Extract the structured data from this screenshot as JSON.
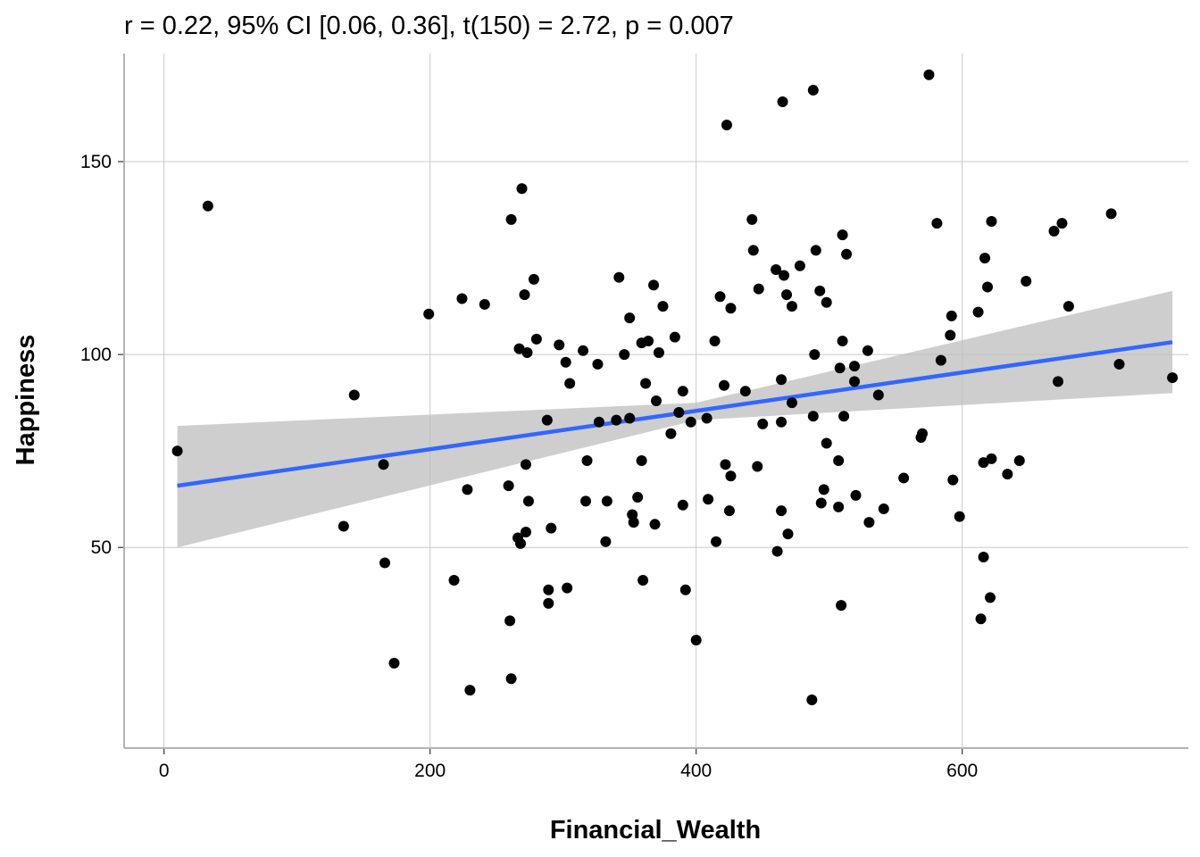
{
  "chart_data": {
    "type": "scatter",
    "title": "r = 0.22, 95% CI [0.06, 0.36], t(150) = 2.72, p = 0.007",
    "xlabel": "Financial_Wealth",
    "ylabel": "Happiness",
    "xlim": [
      -30,
      770
    ],
    "ylim": [
      -2,
      178
    ],
    "x_ticks": [
      0,
      200,
      400,
      600
    ],
    "y_ticks": [
      50,
      100,
      150
    ],
    "x_tick_labels": [
      "0",
      "200",
      "400",
      "600"
    ],
    "y_tick_labels": [
      "50",
      "100",
      "150"
    ],
    "grid": true,
    "colors": {
      "points": "#000000",
      "fit_line": "#3366FF",
      "confidence_band": "#BEBEBE",
      "grid": "#C8C8C8",
      "panel_border": "#B4B4B4"
    },
    "fit": {
      "method": "linear",
      "line": [
        [
          10,
          66
        ],
        [
          758,
          103.2
        ]
      ],
      "ci_lower": [
        [
          10,
          50
        ],
        [
          400,
          83
        ],
        [
          758,
          90
        ]
      ],
      "ci_upper": [
        [
          10,
          81.5
        ],
        [
          400,
          87.5
        ],
        [
          758,
          116.5
        ]
      ]
    },
    "points": [
      [
        10,
        75
      ],
      [
        33,
        138.5
      ],
      [
        135,
        55.5
      ],
      [
        143,
        89.5
      ],
      [
        165,
        71.5
      ],
      [
        166,
        46
      ],
      [
        173,
        20
      ],
      [
        199,
        110.5
      ],
      [
        218,
        41.5
      ],
      [
        224,
        114.5
      ],
      [
        228,
        65
      ],
      [
        230,
        13
      ],
      [
        241,
        113
      ],
      [
        259,
        66
      ],
      [
        260,
        31
      ],
      [
        261,
        135
      ],
      [
        261,
        16
      ],
      [
        266,
        52.5
      ],
      [
        267,
        101.5
      ],
      [
        268,
        51
      ],
      [
        269,
        143
      ],
      [
        271,
        115.5
      ],
      [
        272,
        71.5
      ],
      [
        272,
        54
      ],
      [
        273,
        100.5
      ],
      [
        274,
        62
      ],
      [
        278,
        119.5
      ],
      [
        280,
        104
      ],
      [
        288,
        83
      ],
      [
        289,
        35.5
      ],
      [
        289,
        39
      ],
      [
        291,
        55
      ],
      [
        297,
        102.5
      ],
      [
        302,
        98
      ],
      [
        303,
        39.5
      ],
      [
        305,
        92.5
      ],
      [
        315,
        101
      ],
      [
        317,
        62
      ],
      [
        318,
        72.5
      ],
      [
        326,
        97.5
      ],
      [
        327,
        82.5
      ],
      [
        332,
        51.5
      ],
      [
        333,
        62
      ],
      [
        340,
        83
      ],
      [
        342,
        120
      ],
      [
        346,
        100
      ],
      [
        350,
        109.5
      ],
      [
        350,
        83.5
      ],
      [
        352,
        58.5
      ],
      [
        353,
        56.5
      ],
      [
        356,
        63
      ],
      [
        359,
        72.5
      ],
      [
        359,
        103
      ],
      [
        360,
        41.5
      ],
      [
        362,
        92.5
      ],
      [
        364,
        103.5
      ],
      [
        368,
        118
      ],
      [
        369,
        56
      ],
      [
        370,
        88
      ],
      [
        372,
        100.5
      ],
      [
        375,
        112.5
      ],
      [
        381,
        79.5
      ],
      [
        384,
        104.5
      ],
      [
        387,
        85
      ],
      [
        390,
        90.5
      ],
      [
        390,
        61
      ],
      [
        392,
        39
      ],
      [
        396,
        82.5
      ],
      [
        400,
        26
      ],
      [
        408,
        83.5
      ],
      [
        409,
        62.5
      ],
      [
        414,
        103.5
      ],
      [
        415,
        51.5
      ],
      [
        418,
        115
      ],
      [
        421,
        92
      ],
      [
        422,
        71.5
      ],
      [
        423,
        159.5
      ],
      [
        425,
        59.5
      ],
      [
        426,
        68.5
      ],
      [
        426,
        112
      ],
      [
        437,
        90.5
      ],
      [
        442,
        135
      ],
      [
        443,
        127
      ],
      [
        446,
        71
      ],
      [
        447,
        117
      ],
      [
        450,
        82
      ],
      [
        460,
        122
      ],
      [
        461,
        49
      ],
      [
        464,
        93.5
      ],
      [
        464,
        82.5
      ],
      [
        464,
        59.5
      ],
      [
        465,
        165.5
      ],
      [
        466,
        120.5
      ],
      [
        468,
        115.5
      ],
      [
        469,
        53.5
      ],
      [
        472,
        112.5
      ],
      [
        472,
        87.5
      ],
      [
        478,
        123
      ],
      [
        487,
        10.5
      ],
      [
        488,
        168.5
      ],
      [
        488,
        84
      ],
      [
        489,
        100
      ],
      [
        490,
        127
      ],
      [
        493,
        116.5
      ],
      [
        494,
        61.5
      ],
      [
        496,
        65
      ],
      [
        498,
        113.5
      ],
      [
        498,
        77
      ],
      [
        507,
        60.5
      ],
      [
        507,
        72.5
      ],
      [
        508,
        96.5
      ],
      [
        509,
        35
      ],
      [
        510,
        103.5
      ],
      [
        510,
        131
      ],
      [
        511,
        84
      ],
      [
        513,
        126
      ],
      [
        519,
        93
      ],
      [
        519,
        97
      ],
      [
        520,
        63.5
      ],
      [
        529,
        101
      ],
      [
        530,
        56.5
      ],
      [
        537,
        89.5
      ],
      [
        541,
        60
      ],
      [
        556,
        68
      ],
      [
        569,
        78.5
      ],
      [
        570,
        79.5
      ],
      [
        575,
        172.5
      ],
      [
        581,
        134
      ],
      [
        584,
        98.5
      ],
      [
        591,
        105
      ],
      [
        592,
        110
      ],
      [
        593,
        67.5
      ],
      [
        598,
        58
      ],
      [
        612,
        111
      ],
      [
        614,
        31.5
      ],
      [
        616,
        47.5
      ],
      [
        616,
        72
      ],
      [
        617,
        125
      ],
      [
        619,
        117.5
      ],
      [
        621,
        37
      ],
      [
        622,
        134.5
      ],
      [
        622,
        73
      ],
      [
        634,
        69
      ],
      [
        643,
        72.5
      ],
      [
        648,
        119
      ],
      [
        669,
        132
      ],
      [
        672,
        93
      ],
      [
        675,
        134
      ],
      [
        680,
        112.5
      ],
      [
        712,
        136.5
      ],
      [
        718,
        97.5
      ],
      [
        758,
        94
      ]
    ]
  }
}
